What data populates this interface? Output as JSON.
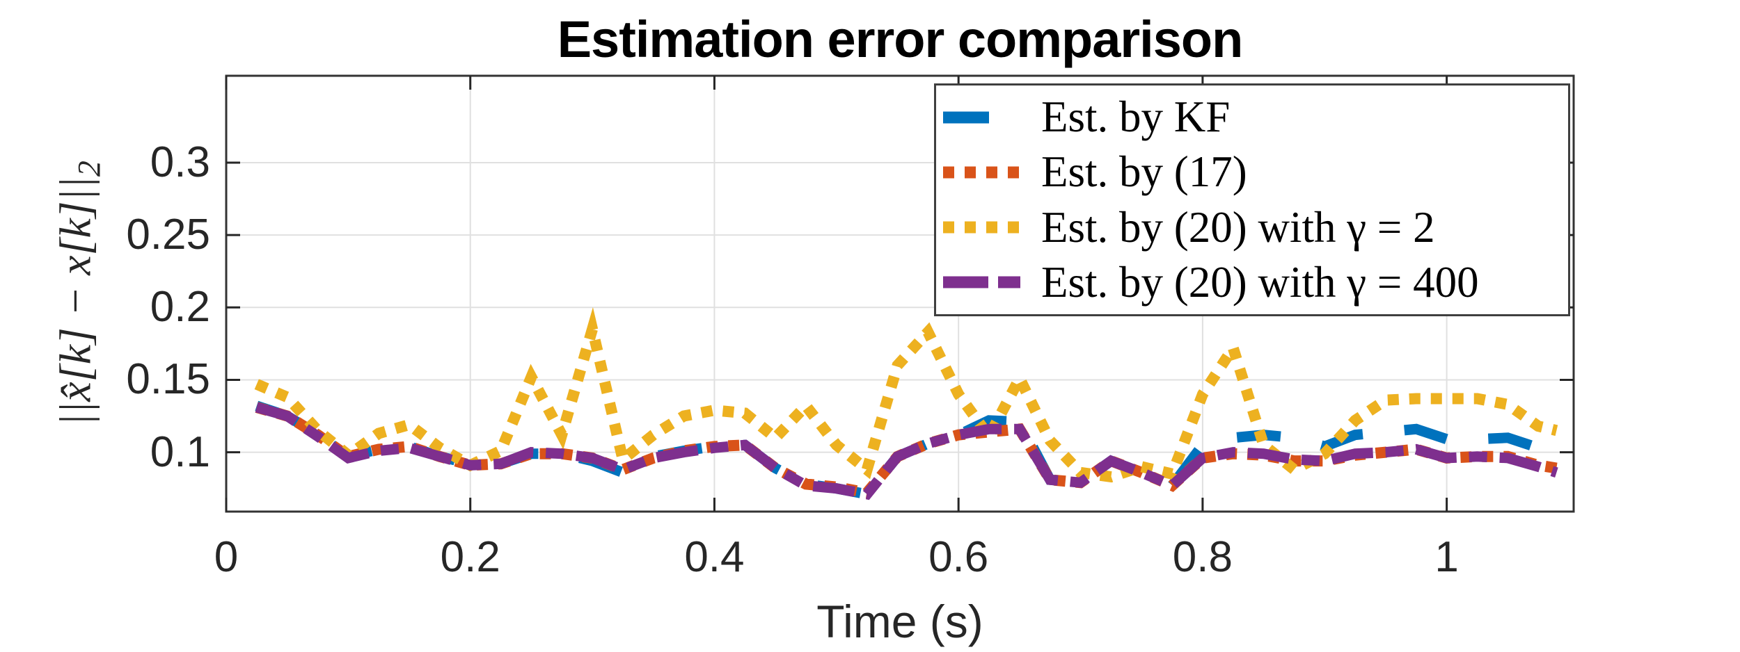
{
  "chart_data": {
    "type": "line",
    "title": "Estimation error comparison",
    "xlabel": "Time (s)",
    "ylabel_base": "||x̂[k] − x[k]||",
    "ylabel_sub": "2",
    "xlim": [
      0,
      1.104
    ],
    "ylim": [
      0.059,
      0.36
    ],
    "grid": true,
    "legend_position": "top-right",
    "xtick_values": [
      0,
      0.2,
      0.4,
      0.6,
      0.8,
      1
    ],
    "xtick_labels": [
      "0",
      "0.2",
      "0.4",
      "0.6",
      "0.8",
      "1"
    ],
    "ytick_values": [
      0.1,
      0.15,
      0.2,
      0.25,
      0.3
    ],
    "ytick_labels": [
      "0.1",
      "0.15",
      "0.2",
      "0.25",
      "0.3"
    ],
    "x": [
      0.025,
      0.05,
      0.075,
      0.1,
      0.125,
      0.15,
      0.175,
      0.2,
      0.225,
      0.25,
      0.275,
      0.3,
      0.325,
      0.35,
      0.375,
      0.4,
      0.425,
      0.45,
      0.475,
      0.5,
      0.525,
      0.55,
      0.575,
      0.6,
      0.625,
      0.65,
      0.675,
      0.7,
      0.725,
      0.75,
      0.775,
      0.8,
      0.825,
      0.85,
      0.875,
      0.9,
      0.925,
      0.95,
      0.975,
      1.0,
      1.025,
      1.05,
      1.075,
      1.09
    ],
    "series": [
      {
        "name": "Est. by KF",
        "color": "#0072BD",
        "line_style": "dash",
        "values": [
          0.132,
          0.125,
          0.112,
          0.097,
          0.102,
          0.104,
          0.097,
          0.092,
          0.092,
          0.099,
          0.099,
          0.094,
          0.086,
          0.097,
          0.101,
          0.104,
          0.105,
          0.089,
          0.078,
          0.075,
          0.071,
          0.097,
          0.106,
          0.112,
          0.122,
          0.121,
          0.081,
          0.079,
          0.094,
          0.086,
          0.077,
          0.105,
          0.11,
          0.112,
          0.11,
          0.104,
          0.112,
          0.114,
          0.116,
          0.109,
          0.109,
          0.11,
          0.103,
          0.101
        ]
      },
      {
        "name": "Est. by (17)",
        "color": "#D95319",
        "line_style": "dot",
        "values": [
          0.131,
          0.125,
          0.112,
          0.097,
          0.102,
          0.104,
          0.097,
          0.091,
          0.092,
          0.099,
          0.099,
          0.096,
          0.088,
          0.096,
          0.101,
          0.104,
          0.105,
          0.089,
          0.078,
          0.076,
          0.072,
          0.097,
          0.106,
          0.112,
          0.114,
          0.116,
          0.081,
          0.079,
          0.094,
          0.086,
          0.077,
          0.096,
          0.099,
          0.098,
          0.094,
          0.094,
          0.098,
          0.1,
          0.102,
          0.096,
          0.097,
          0.097,
          0.091,
          0.089
        ]
      },
      {
        "name": "Est. by (20) with γ = 2",
        "color": "#EDB120",
        "line_style": "dot",
        "values": [
          0.147,
          0.138,
          0.115,
          0.098,
          0.113,
          0.119,
          0.103,
          0.091,
          0.101,
          0.152,
          0.112,
          0.185,
          0.095,
          0.112,
          0.125,
          0.129,
          0.127,
          0.11,
          0.132,
          0.105,
          0.088,
          0.16,
          0.183,
          0.14,
          0.111,
          0.151,
          0.108,
          0.086,
          0.083,
          0.09,
          0.085,
          0.14,
          0.172,
          0.105,
          0.088,
          0.099,
          0.122,
          0.136,
          0.137,
          0.137,
          0.137,
          0.133,
          0.118,
          0.115
        ]
      },
      {
        "name": "Est. by (20) with γ = 400",
        "color": "#7E2F8E",
        "line_style": "dash-dot",
        "values": [
          0.131,
          0.125,
          0.111,
          0.096,
          0.101,
          0.103,
          0.097,
          0.091,
          0.092,
          0.1,
          0.099,
          0.096,
          0.088,
          0.096,
          0.1,
          0.103,
          0.105,
          0.089,
          0.077,
          0.075,
          0.071,
          0.097,
          0.106,
          0.112,
          0.116,
          0.116,
          0.081,
          0.079,
          0.094,
          0.086,
          0.077,
          0.096,
          0.1,
          0.099,
          0.095,
          0.094,
          0.099,
          0.1,
          0.102,
          0.096,
          0.097,
          0.096,
          0.09,
          0.086
        ]
      }
    ]
  },
  "style": {
    "axis_color": "#262626",
    "box_color": "#333333",
    "grid_color": "#e0e0e0",
    "background": "#ffffff",
    "legend_border": "#3f3f3f"
  }
}
